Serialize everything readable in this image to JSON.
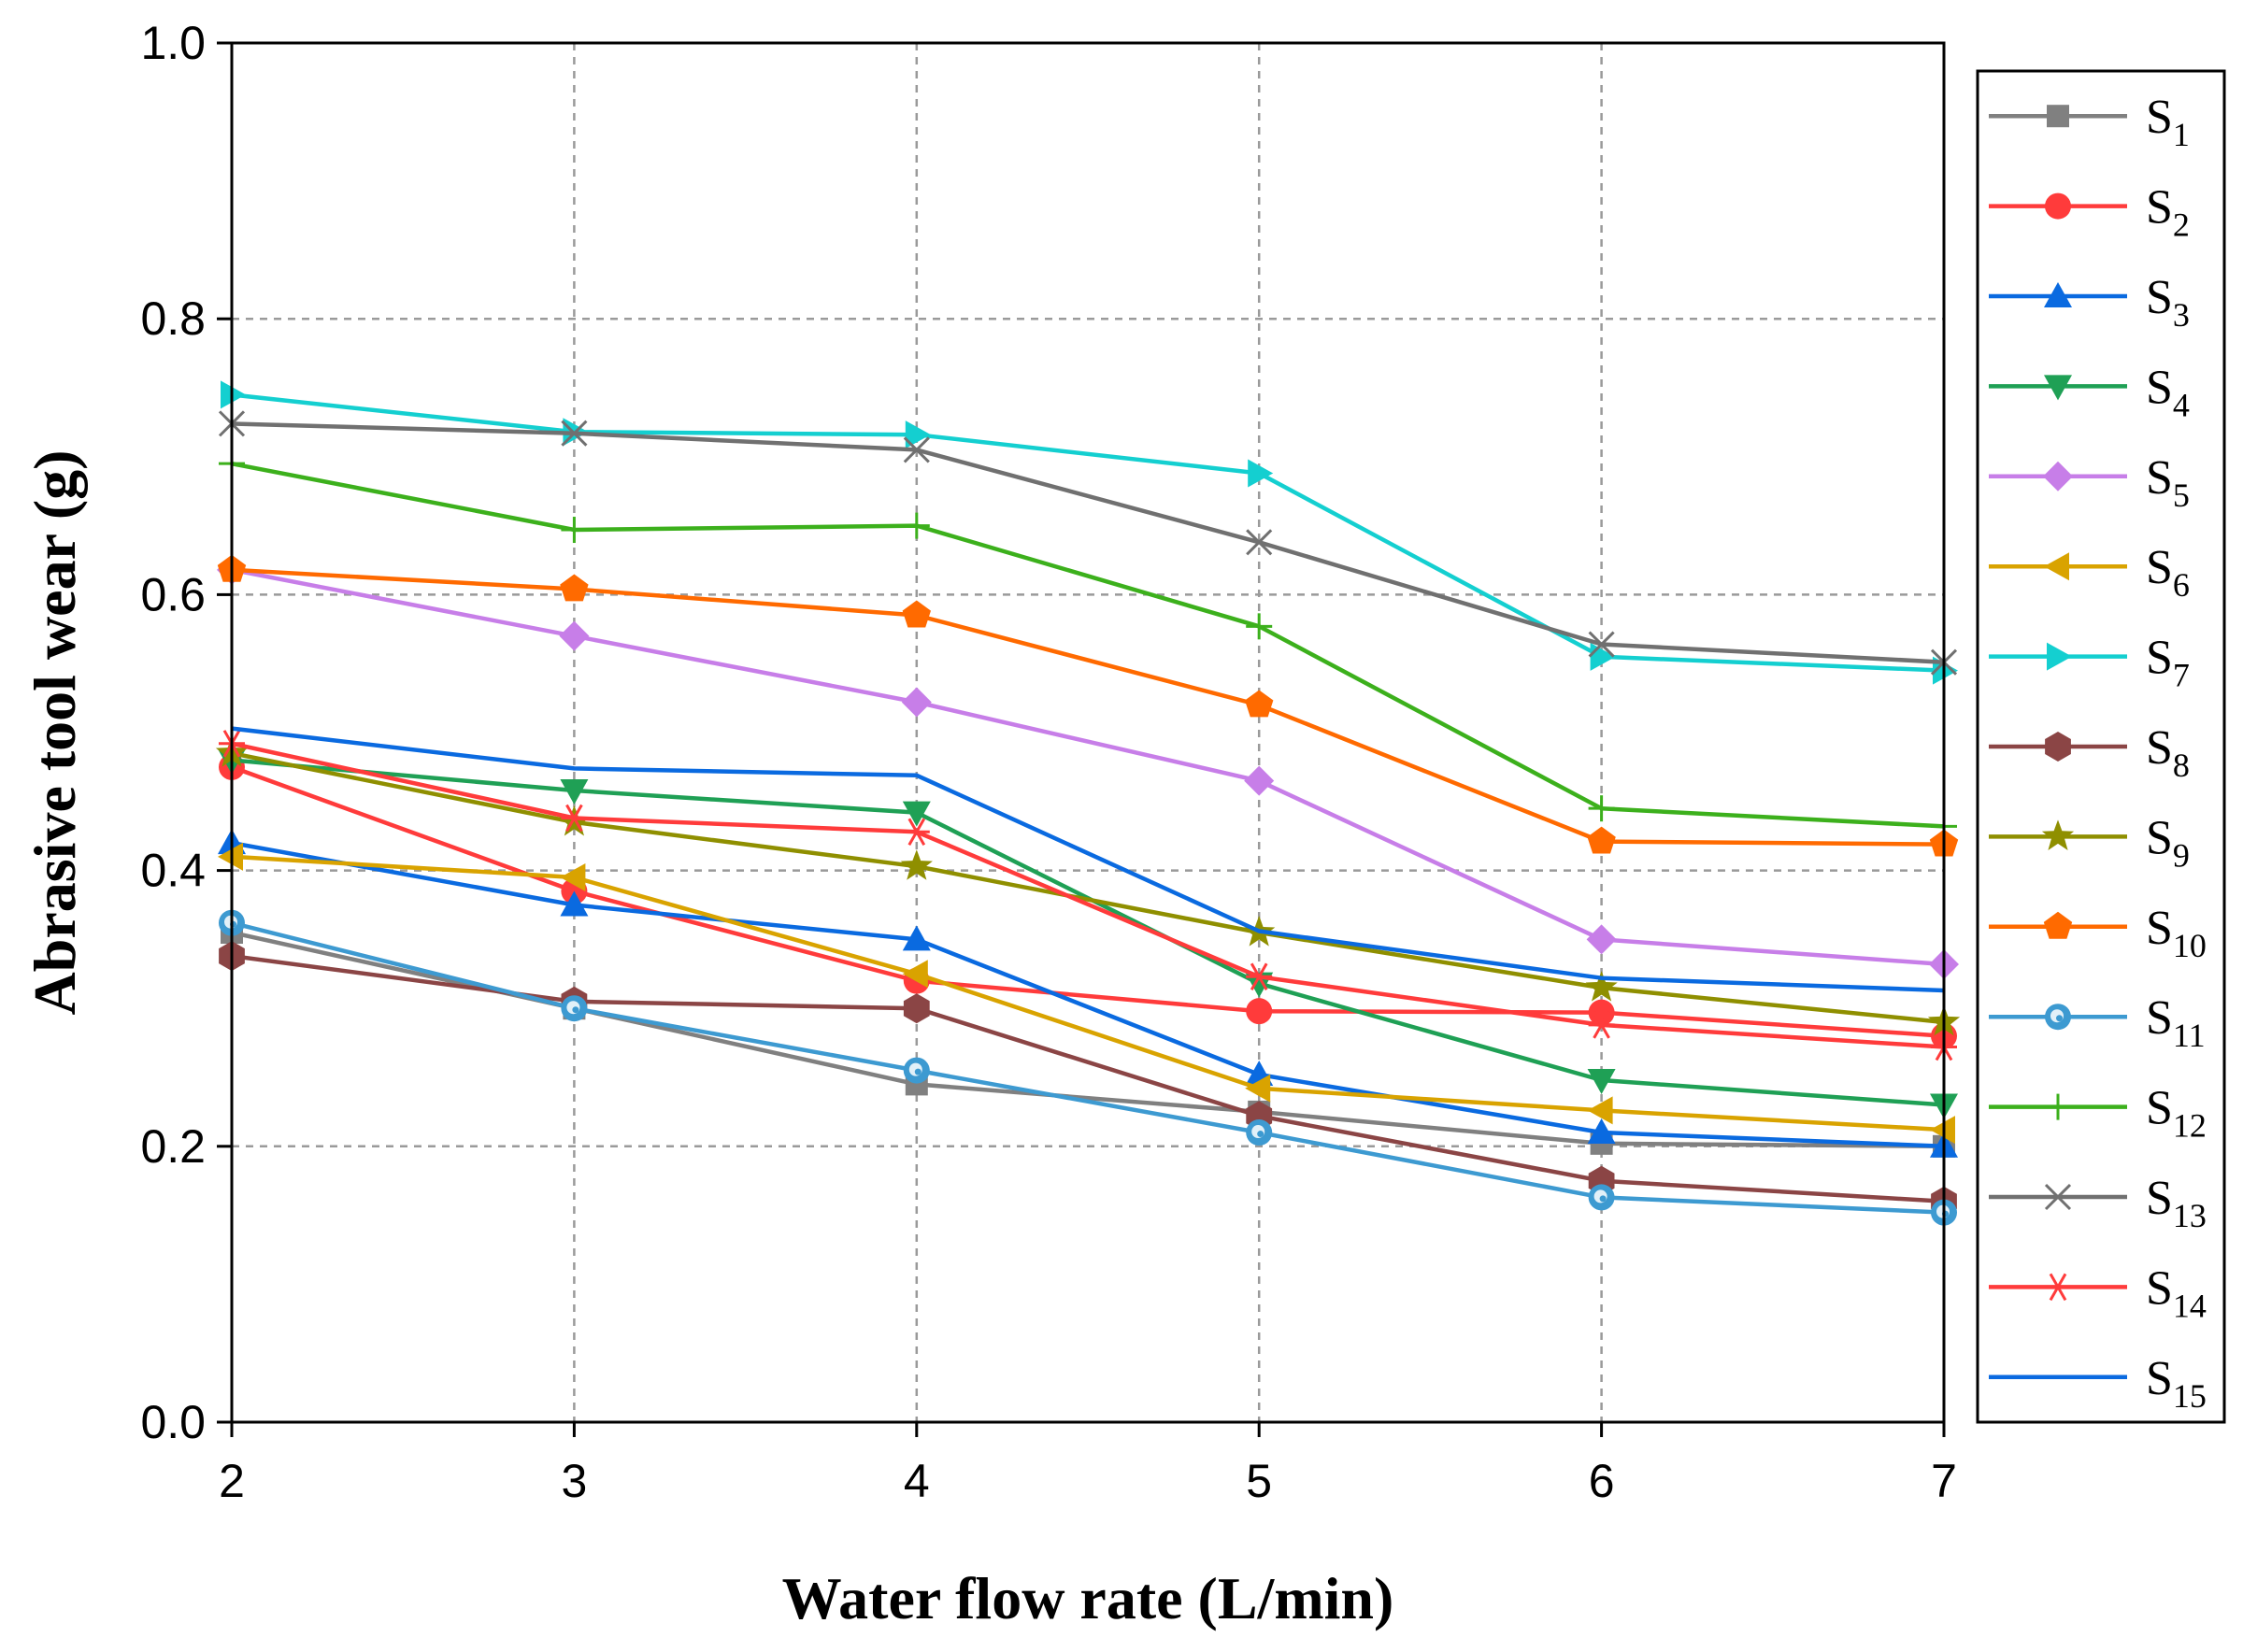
{
  "chart_data": {
    "type": "line",
    "title": "",
    "xlabel": "Water flow rate (L/min)",
    "ylabel": "Abrasive tool wear (g)",
    "x": [
      2,
      3,
      4,
      5,
      6,
      7
    ],
    "xlim": [
      2,
      7
    ],
    "ylim": [
      0.0,
      1.0
    ],
    "xticks": [
      "2",
      "3",
      "4",
      "5",
      "6",
      "7"
    ],
    "yticks": [
      "0.0",
      "0.2",
      "0.4",
      "0.6",
      "0.8",
      "1.0"
    ],
    "grid": true,
    "legend_position": "right",
    "series": [
      {
        "name": "S",
        "sub": "1",
        "color": "#808080",
        "marker": "square",
        "values": [
          0.355,
          0.3,
          0.245,
          0.225,
          0.202,
          0.2
        ]
      },
      {
        "name": "S",
        "sub": "2",
        "color": "#ff3b3b",
        "marker": "circle",
        "values": [
          0.475,
          0.385,
          0.32,
          0.298,
          0.297,
          0.28
        ]
      },
      {
        "name": "S",
        "sub": "3",
        "color": "#0a6ae0",
        "marker": "triangle-up",
        "values": [
          0.42,
          0.375,
          0.35,
          0.252,
          0.21,
          0.2
        ]
      },
      {
        "name": "S",
        "sub": "4",
        "color": "#1fa055",
        "marker": "triangle-down",
        "values": [
          0.48,
          0.458,
          0.442,
          0.318,
          0.248,
          0.23
        ]
      },
      {
        "name": "S",
        "sub": "5",
        "color": "#c77ee8",
        "marker": "diamond",
        "values": [
          0.618,
          0.57,
          0.522,
          0.465,
          0.35,
          0.332
        ]
      },
      {
        "name": "S",
        "sub": "6",
        "color": "#d9a300",
        "marker": "triangle-left",
        "values": [
          0.41,
          0.395,
          0.325,
          0.242,
          0.226,
          0.212
        ]
      },
      {
        "name": "S",
        "sub": "7",
        "color": "#14cfd0",
        "marker": "triangle-right",
        "values": [
          0.745,
          0.718,
          0.716,
          0.688,
          0.555,
          0.545
        ]
      },
      {
        "name": "S",
        "sub": "8",
        "color": "#8b4545",
        "marker": "hexagon",
        "values": [
          0.338,
          0.305,
          0.3,
          0.222,
          0.175,
          0.16
        ]
      },
      {
        "name": "S",
        "sub": "9",
        "color": "#8f8f00",
        "marker": "star",
        "values": [
          0.485,
          0.435,
          0.403,
          0.355,
          0.315,
          0.29
        ]
      },
      {
        "name": "S",
        "sub": "10",
        "color": "#ff6a00",
        "marker": "pentagon",
        "values": [
          0.618,
          0.604,
          0.585,
          0.52,
          0.421,
          0.419
        ]
      },
      {
        "name": "S",
        "sub": "11",
        "color": "#3d9ad1",
        "marker": "sphere",
        "values": [
          0.362,
          0.3,
          0.255,
          0.21,
          0.163,
          0.152
        ]
      },
      {
        "name": "S",
        "sub": "12",
        "color": "#3cb01c",
        "marker": "plus",
        "values": [
          0.695,
          0.647,
          0.65,
          0.577,
          0.445,
          0.432
        ]
      },
      {
        "name": "S",
        "sub": "13",
        "color": "#707070",
        "marker": "x",
        "values": [
          0.724,
          0.717,
          0.705,
          0.638,
          0.564,
          0.551
        ]
      },
      {
        "name": "S",
        "sub": "14",
        "color": "#ff3b3b",
        "marker": "asterisk",
        "values": [
          0.492,
          0.438,
          0.428,
          0.323,
          0.288,
          0.272
        ]
      },
      {
        "name": "S",
        "sub": "15",
        "color": "#0a6ae0",
        "marker": "none",
        "values": [
          0.503,
          0.474,
          0.469,
          0.356,
          0.322,
          0.313
        ]
      }
    ]
  }
}
